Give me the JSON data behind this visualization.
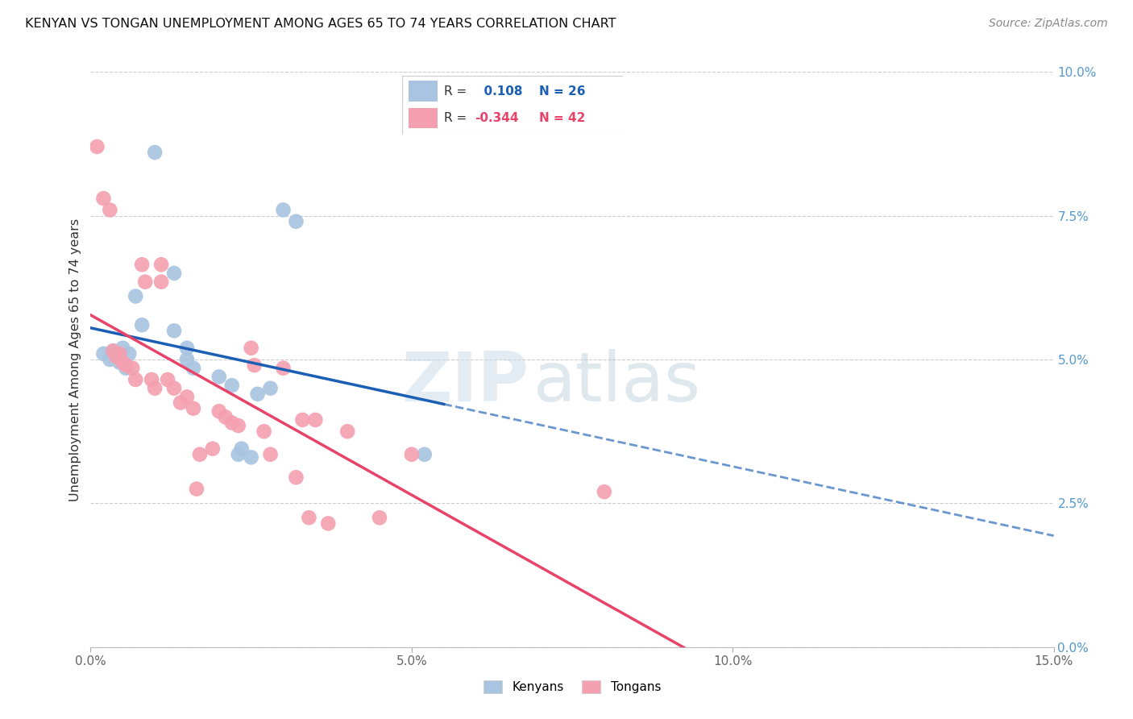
{
  "title": "KENYAN VS TONGAN UNEMPLOYMENT AMONG AGES 65 TO 74 YEARS CORRELATION CHART",
  "source": "Source: ZipAtlas.com",
  "ylabel": "Unemployment Among Ages 65 to 74 years",
  "xlim": [
    0.0,
    15.0
  ],
  "ylim": [
    0.0,
    10.0
  ],
  "kenyan_R": "0.108",
  "kenyan_N": "26",
  "tongan_R": "-0.344",
  "tongan_N": "42",
  "kenyan_color": "#a8c4e0",
  "tongan_color": "#f4a0b0",
  "kenyan_line_color": "#1a5fb4",
  "tongan_line_color": "#e8446a",
  "kenyan_scatter": [
    [
      0.2,
      5.1
    ],
    [
      0.3,
      5.0
    ],
    [
      0.35,
      5.15
    ],
    [
      0.4,
      5.05
    ],
    [
      0.45,
      4.95
    ],
    [
      0.5,
      5.2
    ],
    [
      0.55,
      4.85
    ],
    [
      0.6,
      5.1
    ],
    [
      0.7,
      6.1
    ],
    [
      0.8,
      5.6
    ],
    [
      1.0,
      8.6
    ],
    [
      1.3,
      6.5
    ],
    [
      1.3,
      5.5
    ],
    [
      1.5,
      5.2
    ],
    [
      1.5,
      5.0
    ],
    [
      1.6,
      4.85
    ],
    [
      2.0,
      4.7
    ],
    [
      2.2,
      4.55
    ],
    [
      2.3,
      3.35
    ],
    [
      2.35,
      3.45
    ],
    [
      2.5,
      3.3
    ],
    [
      2.6,
      4.4
    ],
    [
      2.8,
      4.5
    ],
    [
      3.0,
      7.6
    ],
    [
      3.2,
      7.4
    ],
    [
      5.2,
      3.35
    ]
  ],
  "tongan_scatter": [
    [
      0.1,
      8.7
    ],
    [
      0.2,
      7.8
    ],
    [
      0.3,
      7.6
    ],
    [
      0.35,
      5.15
    ],
    [
      0.4,
      5.05
    ],
    [
      0.45,
      5.1
    ],
    [
      0.5,
      4.95
    ],
    [
      0.55,
      4.9
    ],
    [
      0.65,
      4.85
    ],
    [
      0.7,
      4.65
    ],
    [
      0.8,
      6.65
    ],
    [
      0.85,
      6.35
    ],
    [
      0.95,
      4.65
    ],
    [
      1.0,
      4.5
    ],
    [
      1.1,
      6.65
    ],
    [
      1.1,
      6.35
    ],
    [
      1.2,
      4.65
    ],
    [
      1.3,
      4.5
    ],
    [
      1.4,
      4.25
    ],
    [
      1.5,
      4.35
    ],
    [
      1.6,
      4.15
    ],
    [
      1.65,
      2.75
    ],
    [
      1.7,
      3.35
    ],
    [
      1.9,
      3.45
    ],
    [
      2.0,
      4.1
    ],
    [
      2.1,
      4.0
    ],
    [
      2.2,
      3.9
    ],
    [
      2.3,
      3.85
    ],
    [
      2.5,
      5.2
    ],
    [
      2.55,
      4.9
    ],
    [
      2.7,
      3.75
    ],
    [
      2.8,
      3.35
    ],
    [
      3.0,
      4.85
    ],
    [
      3.2,
      2.95
    ],
    [
      3.3,
      3.95
    ],
    [
      3.4,
      2.25
    ],
    [
      3.5,
      3.95
    ],
    [
      3.7,
      2.15
    ],
    [
      4.0,
      3.75
    ],
    [
      4.5,
      2.25
    ],
    [
      5.0,
      3.35
    ],
    [
      8.0,
      2.7
    ]
  ],
  "kenyan_line_x": [
    0.0,
    5.5,
    15.0
  ],
  "kenyan_solid_end": 5.5,
  "tongan_line_x": [
    0.0,
    15.0
  ],
  "x_ticks": [
    0,
    5,
    10,
    15
  ],
  "y_ticks_right": [
    0.0,
    2.5,
    5.0,
    7.5,
    10.0
  ],
  "watermark_zip_color": "#ccdde8",
  "watermark_atlas_color": "#b8ccd8"
}
